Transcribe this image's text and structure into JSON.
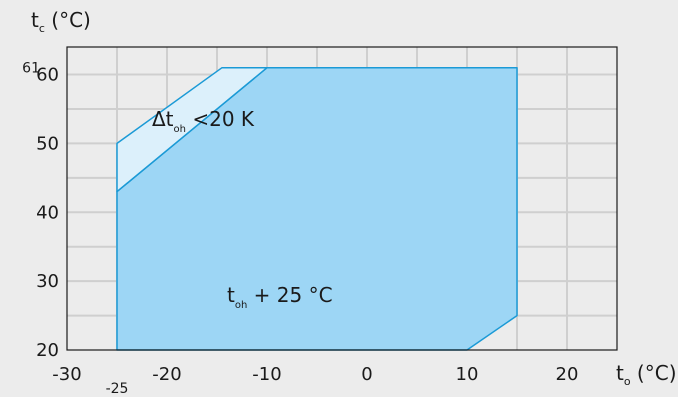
{
  "chart_data": {
    "type": "area",
    "ylabel": {
      "main": "t",
      "sub": "c",
      "unit": " (°C)"
    },
    "xlabel": {
      "main": "t",
      "sub": "o",
      "unit": " (°C)"
    },
    "xlim": [
      -30,
      25
    ],
    "ylim": [
      20,
      64
    ],
    "x_ticks": [
      -30,
      -20,
      -10,
      0,
      10,
      20
    ],
    "y_ticks": [
      20,
      30,
      40,
      50,
      60
    ],
    "extra_x_tick": {
      "value": -25,
      "label": "-25"
    },
    "extra_y_tick": {
      "value": 61,
      "label": "61"
    },
    "grid": true,
    "series": [
      {
        "x": [
          -25,
          -25,
          -10,
          15,
          15,
          10
        ],
        "y": [
          20,
          43,
          61,
          61,
          25,
          20
        ],
        "color": "#9dd6f5"
      },
      {
        "x": [
          -25,
          -25,
          -14.5,
          -10,
          -25
        ],
        "y": [
          43,
          50,
          61,
          61,
          43
        ],
        "color": "#dcf0fb"
      }
    ],
    "annotations": [
      {
        "x": -21.5,
        "y": 52.5,
        "prefix": "Δt",
        "sub": "oh",
        "suffix": " <20 K"
      },
      {
        "x": -14,
        "y": 27,
        "prefix": "t",
        "sub": "oh",
        "suffix": " + 25 °C"
      }
    ],
    "colors": {
      "background": "#ececec",
      "plot_background": "#ececec",
      "grid": "#cfcfcf",
      "frame": "#1a1a1a",
      "outline": "#1b9ad6"
    }
  }
}
